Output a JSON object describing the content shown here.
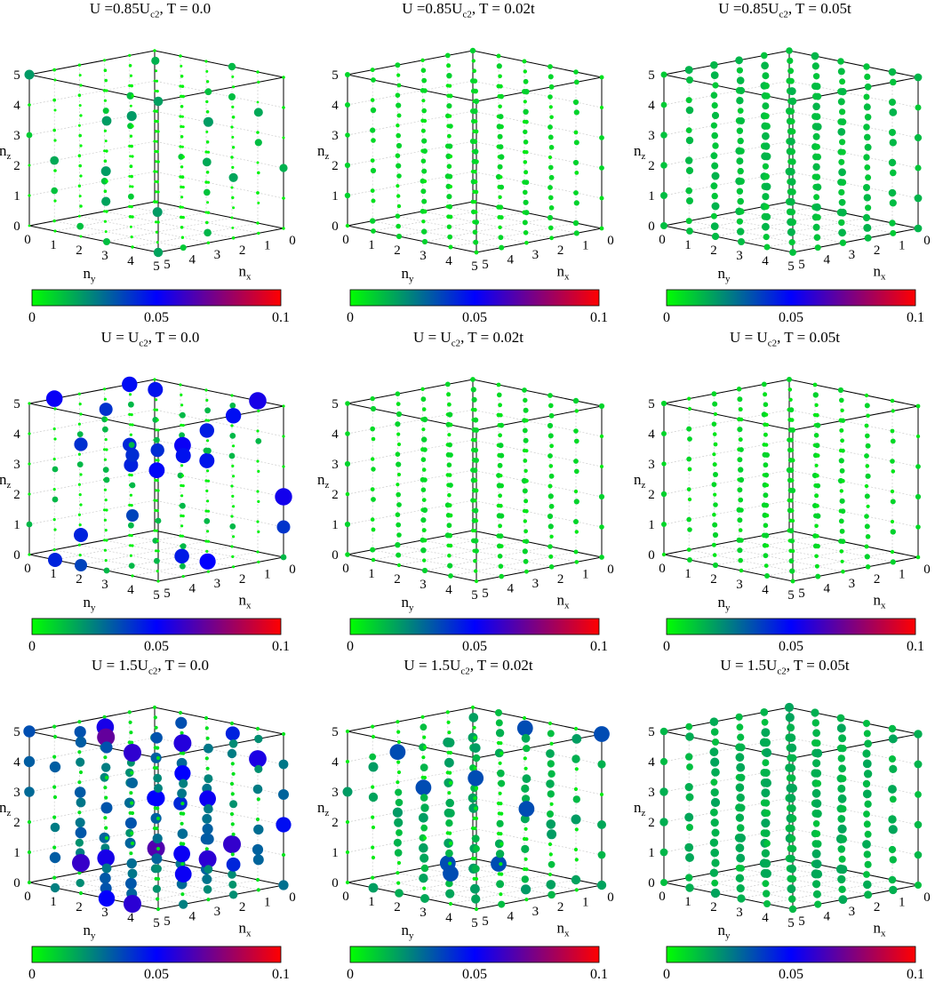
{
  "chart_data": [
    {
      "type": "scatter",
      "subtype": "3d-bubble",
      "title": {
        "pre": "U =0.85U",
        "sub": "c2",
        "post": ", T = 0.0"
      },
      "U_over_Uc2": 0.85,
      "T": "0.0",
      "ranges": {
        "nx": [
          0,
          5
        ],
        "ny": [
          0,
          5
        ],
        "nz": [
          0,
          5
        ]
      },
      "xlabel": {
        "base": "n",
        "sub": "x"
      },
      "ylabel": {
        "base": "n",
        "sub": "y"
      },
      "zlabel": {
        "base": "n",
        "sub": "z"
      },
      "ticks": [
        0,
        1,
        2,
        3,
        4,
        5
      ],
      "grid": true,
      "colorbar": {
        "range": [
          0,
          0.1
        ],
        "ticks": [
          "0",
          "0.05",
          "0.1"
        ],
        "colors": [
          "#00ff00",
          "#0000ff",
          "#ff0000"
        ]
      },
      "pattern": "sparse",
      "mean_value": 0.005,
      "point_color": "#22dd22"
    },
    {
      "type": "scatter",
      "subtype": "3d-bubble",
      "title": {
        "pre": "U =0.85U",
        "sub": "c2",
        "post": ", T = 0.02t"
      },
      "U_over_Uc2": 0.85,
      "T": "0.02t",
      "ranges": {
        "nx": [
          0,
          5
        ],
        "ny": [
          0,
          5
        ],
        "nz": [
          0,
          5
        ]
      },
      "xlabel": {
        "base": "n",
        "sub": "x"
      },
      "ylabel": {
        "base": "n",
        "sub": "y"
      },
      "zlabel": {
        "base": "n",
        "sub": "z"
      },
      "ticks": [
        0,
        1,
        2,
        3,
        4,
        5
      ],
      "grid": true,
      "colorbar": {
        "range": [
          0,
          0.1
        ],
        "ticks": [
          "0",
          "0.05",
          "0.1"
        ],
        "colors": [
          "#00ff00",
          "#0000ff",
          "#ff0000"
        ]
      },
      "pattern": "uniform-small",
      "mean_value": 0.008,
      "point_color": "#22dd22"
    },
    {
      "type": "scatter",
      "subtype": "3d-bubble",
      "title": {
        "pre": "U =0.85U",
        "sub": "c2",
        "post": ", T = 0.05t"
      },
      "U_over_Uc2": 0.85,
      "T": "0.05t",
      "ranges": {
        "nx": [
          0,
          5
        ],
        "ny": [
          0,
          5
        ],
        "nz": [
          0,
          5
        ]
      },
      "xlabel": {
        "base": "n",
        "sub": "x"
      },
      "ylabel": {
        "base": "n",
        "sub": "y"
      },
      "zlabel": {
        "base": "n",
        "sub": "z"
      },
      "ticks": [
        0,
        1,
        2,
        3,
        4,
        5
      ],
      "grid": true,
      "colorbar": {
        "range": [
          0,
          0.1
        ],
        "ticks": [
          "0",
          "0.05",
          "0.1"
        ],
        "colors": [
          "#00ff00",
          "#0000ff",
          "#ff0000"
        ]
      },
      "pattern": "uniform-large",
      "mean_value": 0.012,
      "point_color": "#22cc33"
    },
    {
      "type": "scatter",
      "subtype": "3d-bubble",
      "title": {
        "pre": "U = U",
        "sub": "c2",
        "post": ", T = 0.0"
      },
      "U_over_Uc2": 1.0,
      "T": "0.0",
      "ranges": {
        "nx": [
          0,
          5
        ],
        "ny": [
          0,
          5
        ],
        "nz": [
          0,
          5
        ]
      },
      "xlabel": {
        "base": "n",
        "sub": "x"
      },
      "ylabel": {
        "base": "n",
        "sub": "y"
      },
      "zlabel": {
        "base": "n",
        "sub": "z"
      },
      "ticks": [
        0,
        1,
        2,
        3,
        4,
        5
      ],
      "grid": true,
      "colorbar": {
        "range": [
          0,
          0.1
        ],
        "ticks": [
          "0",
          "0.05",
          "0.1"
        ],
        "colors": [
          "#00ff00",
          "#0000ff",
          "#ff0000"
        ]
      },
      "pattern": "sparse-blue",
      "mean_value": 0.02,
      "point_color": "#22aa55"
    },
    {
      "type": "scatter",
      "subtype": "3d-bubble",
      "title": {
        "pre": "U = U",
        "sub": "c2",
        "post": ", T = 0.02t"
      },
      "U_over_Uc2": 1.0,
      "T": "0.02t",
      "ranges": {
        "nx": [
          0,
          5
        ],
        "ny": [
          0,
          5
        ],
        "nz": [
          0,
          5
        ]
      },
      "xlabel": {
        "base": "n",
        "sub": "x"
      },
      "ylabel": {
        "base": "n",
        "sub": "y"
      },
      "zlabel": {
        "base": "n",
        "sub": "z"
      },
      "ticks": [
        0,
        1,
        2,
        3,
        4,
        5
      ],
      "grid": true,
      "colorbar": {
        "range": [
          0,
          0.1
        ],
        "ticks": [
          "0",
          "0.05",
          "0.1"
        ],
        "colors": [
          "#00ff00",
          "#0000ff",
          "#ff0000"
        ]
      },
      "pattern": "uniform-small",
      "mean_value": 0.012,
      "point_color": "#22bb44"
    },
    {
      "type": "scatter",
      "subtype": "3d-bubble",
      "title": {
        "pre": "U = U",
        "sub": "c2",
        "post": ", T = 0.05t"
      },
      "U_over_Uc2": 1.0,
      "T": "0.05t",
      "ranges": {
        "nx": [
          0,
          5
        ],
        "ny": [
          0,
          5
        ],
        "nz": [
          0,
          5
        ]
      },
      "xlabel": {
        "base": "n",
        "sub": "x"
      },
      "ylabel": {
        "base": "n",
        "sub": "y"
      },
      "zlabel": {
        "base": "n",
        "sub": "z"
      },
      "ticks": [
        0,
        1,
        2,
        3,
        4,
        5
      ],
      "grid": true,
      "colorbar": {
        "range": [
          0,
          0.1
        ],
        "ticks": [
          "0",
          "0.05",
          "0.1"
        ],
        "colors": [
          "#00ff00",
          "#0000ff",
          "#ff0000"
        ]
      },
      "pattern": "uniform-small",
      "mean_value": 0.012,
      "point_color": "#22bb44"
    },
    {
      "type": "scatter",
      "subtype": "3d-bubble",
      "title": {
        "pre": "U = 1.5U",
        "sub": "c2",
        "post": ", T = 0.0"
      },
      "U_over_Uc2": 1.5,
      "T": "0.0",
      "ranges": {
        "nx": [
          0,
          5
        ],
        "ny": [
          0,
          5
        ],
        "nz": [
          0,
          5
        ]
      },
      "xlabel": {
        "base": "n",
        "sub": "x"
      },
      "ylabel": {
        "base": "n",
        "sub": "y"
      },
      "zlabel": {
        "base": "n",
        "sub": "z"
      },
      "ticks": [
        0,
        1,
        2,
        3,
        4,
        5
      ],
      "grid": true,
      "colorbar": {
        "range": [
          0,
          0.1
        ],
        "ticks": [
          "0",
          "0.05",
          "0.1"
        ],
        "colors": [
          "#00ff00",
          "#0000ff",
          "#ff0000"
        ]
      },
      "pattern": "dense-blue",
      "mean_value": 0.03,
      "point_color": "#229966"
    },
    {
      "type": "scatter",
      "subtype": "3d-bubble",
      "title": {
        "pre": "U = 1.5U",
        "sub": "c2",
        "post": ", T = 0.02t"
      },
      "U_over_Uc2": 1.5,
      "T": "0.02t",
      "ranges": {
        "nx": [
          0,
          5
        ],
        "ny": [
          0,
          5
        ],
        "nz": [
          0,
          5
        ]
      },
      "xlabel": {
        "base": "n",
        "sub": "x"
      },
      "ylabel": {
        "base": "n",
        "sub": "y"
      },
      "zlabel": {
        "base": "n",
        "sub": "z"
      },
      "ticks": [
        0,
        1,
        2,
        3,
        4,
        5
      ],
      "grid": true,
      "colorbar": {
        "range": [
          0,
          0.1
        ],
        "ticks": [
          "0",
          "0.05",
          "0.1"
        ],
        "colors": [
          "#00ff00",
          "#0000ff",
          "#ff0000"
        ]
      },
      "pattern": "mixed",
      "mean_value": 0.018,
      "point_color": "#22aa55"
    },
    {
      "type": "scatter",
      "subtype": "3d-bubble",
      "title": {
        "pre": "U = 1.5U",
        "sub": "c2",
        "post": ", T = 0.05t"
      },
      "U_over_Uc2": 1.5,
      "T": "0.05t",
      "ranges": {
        "nx": [
          0,
          5
        ],
        "ny": [
          0,
          5
        ],
        "nz": [
          0,
          5
        ]
      },
      "xlabel": {
        "base": "n",
        "sub": "x"
      },
      "ylabel": {
        "base": "n",
        "sub": "y"
      },
      "zlabel": {
        "base": "n",
        "sub": "z"
      },
      "ticks": [
        0,
        1,
        2,
        3,
        4,
        5
      ],
      "grid": true,
      "colorbar": {
        "range": [
          0,
          0.1
        ],
        "ticks": [
          "0",
          "0.05",
          "0.1"
        ],
        "colors": [
          "#00ff00",
          "#0000ff",
          "#ff0000"
        ]
      },
      "pattern": "uniform-medium",
      "mean_value": 0.018,
      "point_color": "#22aa55"
    }
  ]
}
